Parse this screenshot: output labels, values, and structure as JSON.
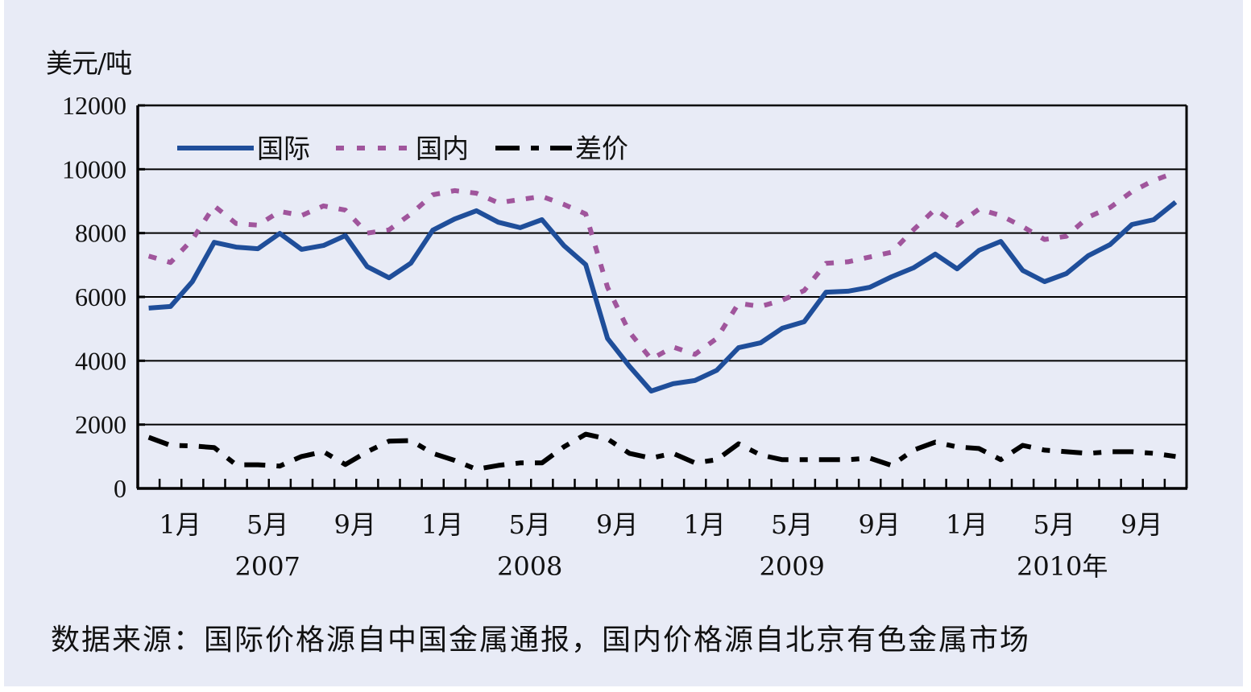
{
  "chart_data": {
    "type": "line",
    "title": "",
    "ylabel": "美元/吨",
    "xlabel": "",
    "ylim": [
      0,
      12000
    ],
    "yticks": [
      0,
      2000,
      4000,
      6000,
      8000,
      10000,
      12000
    ],
    "grid": true,
    "legend_position": "top-left inside",
    "x": [
      "2006-12",
      "2007-01",
      "2007-02",
      "2007-03",
      "2007-04",
      "2007-05",
      "2007-06",
      "2007-07",
      "2007-08",
      "2007-09",
      "2007-10",
      "2007-11",
      "2007-12",
      "2008-01",
      "2008-02",
      "2008-03",
      "2008-04",
      "2008-05",
      "2008-06",
      "2008-07",
      "2008-08",
      "2008-09",
      "2008-10",
      "2008-11",
      "2008-12",
      "2009-01",
      "2009-02",
      "2009-03",
      "2009-04",
      "2009-05",
      "2009-06",
      "2009-07",
      "2009-08",
      "2009-09",
      "2009-10",
      "2009-11",
      "2009-12",
      "2010-01",
      "2010-02",
      "2010-03",
      "2010-04",
      "2010-05",
      "2010-06",
      "2010-07",
      "2010-08",
      "2010-09",
      "2010-10",
      "2010-11"
    ],
    "x_tick_labels": [
      {
        "index": 1,
        "label": "1月"
      },
      {
        "index": 5,
        "label": "5月"
      },
      {
        "index": 9,
        "label": "9月"
      },
      {
        "index": 13,
        "label": "1月"
      },
      {
        "index": 17,
        "label": "5月"
      },
      {
        "index": 21,
        "label": "9月"
      },
      {
        "index": 25,
        "label": "1月"
      },
      {
        "index": 29,
        "label": "5月"
      },
      {
        "index": 33,
        "label": "9月"
      },
      {
        "index": 37,
        "label": "1月"
      },
      {
        "index": 41,
        "label": "5月"
      },
      {
        "index": 45,
        "label": "9月"
      }
    ],
    "year_labels": [
      {
        "index": 5,
        "label": "2007"
      },
      {
        "index": 17,
        "label": "2008"
      },
      {
        "index": 29,
        "label": "2009"
      },
      {
        "index": 41,
        "label": "2010年"
      }
    ],
    "series": [
      {
        "name": "国际",
        "color": "#1f4e9a",
        "style": "solid",
        "values": [
          5650,
          5700,
          6480,
          7710,
          7560,
          7510,
          7990,
          7490,
          7610,
          7920,
          6950,
          6600,
          7060,
          8090,
          8440,
          8700,
          8340,
          8170,
          8420,
          7610,
          7010,
          4700,
          3830,
          3050,
          3280,
          3380,
          3700,
          4410,
          4560,
          5020,
          5220,
          6150,
          6180,
          6300,
          6630,
          6910,
          7340,
          6880,
          7460,
          7740,
          6830,
          6480,
          6730,
          7290,
          7640,
          8270,
          8420,
          8970
        ]
      },
      {
        "name": "国内",
        "color": "#a0559c",
        "style": "dotted",
        "values": [
          7280,
          7080,
          7800,
          8850,
          8300,
          8250,
          8680,
          8550,
          8850,
          8720,
          8000,
          8100,
          8600,
          9200,
          9330,
          9250,
          8950,
          9050,
          9150,
          8900,
          8600,
          6300,
          4900,
          4050,
          4430,
          4200,
          4700,
          5800,
          5700,
          5900,
          6200,
          7050,
          7100,
          7250,
          7400,
          8100,
          8750,
          8250,
          8750,
          8550,
          8200,
          7800,
          7900,
          8500,
          8800,
          9300,
          9650,
          9900
        ]
      },
      {
        "name": "差价",
        "color": "#000000",
        "style": "dash-dot",
        "values": [
          1600,
          1350,
          1330,
          1280,
          740,
          740,
          700,
          1000,
          1150,
          750,
          1150,
          1480,
          1500,
          1100,
          880,
          600,
          720,
          800,
          800,
          1300,
          1700,
          1550,
          1100,
          950,
          1100,
          800,
          900,
          1400,
          1050,
          900,
          900,
          900,
          900,
          950,
          720,
          1200,
          1450,
          1300,
          1250,
          900,
          1350,
          1200,
          1150,
          1100,
          1150,
          1150,
          1100,
          1000
        ]
      }
    ]
  },
  "labels": {
    "unit": "美元/吨",
    "legend": [
      "国际",
      "国内",
      "差价"
    ],
    "source": "数据来源：国际价格源自中国金属通报，国内价格源自北京有色金属市场"
  },
  "colors": {
    "background": "#e8ebf6",
    "international": "#1f4e9a",
    "domestic": "#a0559c",
    "spread": "#000000"
  }
}
